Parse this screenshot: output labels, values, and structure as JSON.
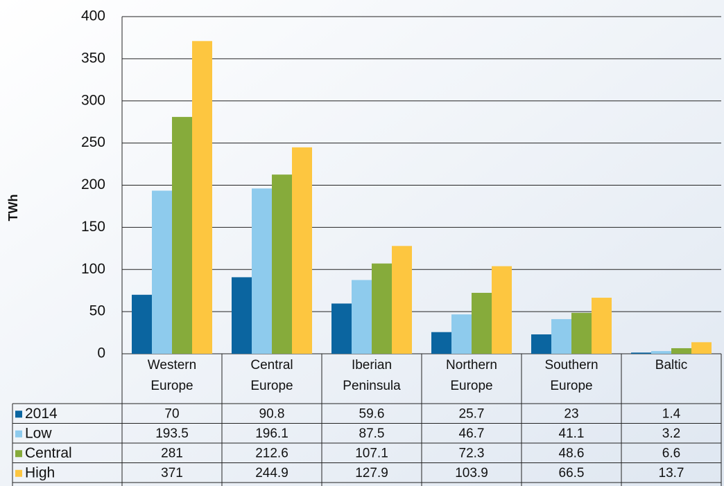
{
  "chart_data": {
    "type": "bar",
    "y_label": "TWh",
    "categories": [
      "Western Europe",
      "Central Europe",
      "Iberian Peninsula",
      "Northern Europe",
      "Southern Europe",
      "Baltic"
    ],
    "series": [
      {
        "name": "2014",
        "color": "#0b65a0",
        "values": [
          70,
          90.8,
          59.6,
          25.7,
          23,
          1.4
        ]
      },
      {
        "name": "Low",
        "color": "#8ecbed",
        "values": [
          193.5,
          196.1,
          87.5,
          46.7,
          41.1,
          3.2
        ]
      },
      {
        "name": "Central",
        "color": "#86ab3b",
        "values": [
          281,
          212.6,
          107.1,
          72.3,
          48.6,
          6.6
        ]
      },
      {
        "name": "High",
        "color": "#fdc640",
        "values": [
          371,
          244.9,
          127.9,
          103.9,
          66.5,
          13.7
        ]
      }
    ],
    "ylim": [
      0,
      400
    ],
    "yticks": [
      0,
      50,
      100,
      150,
      200,
      250,
      300,
      350,
      400
    ],
    "grid": true,
    "legend": "table"
  }
}
